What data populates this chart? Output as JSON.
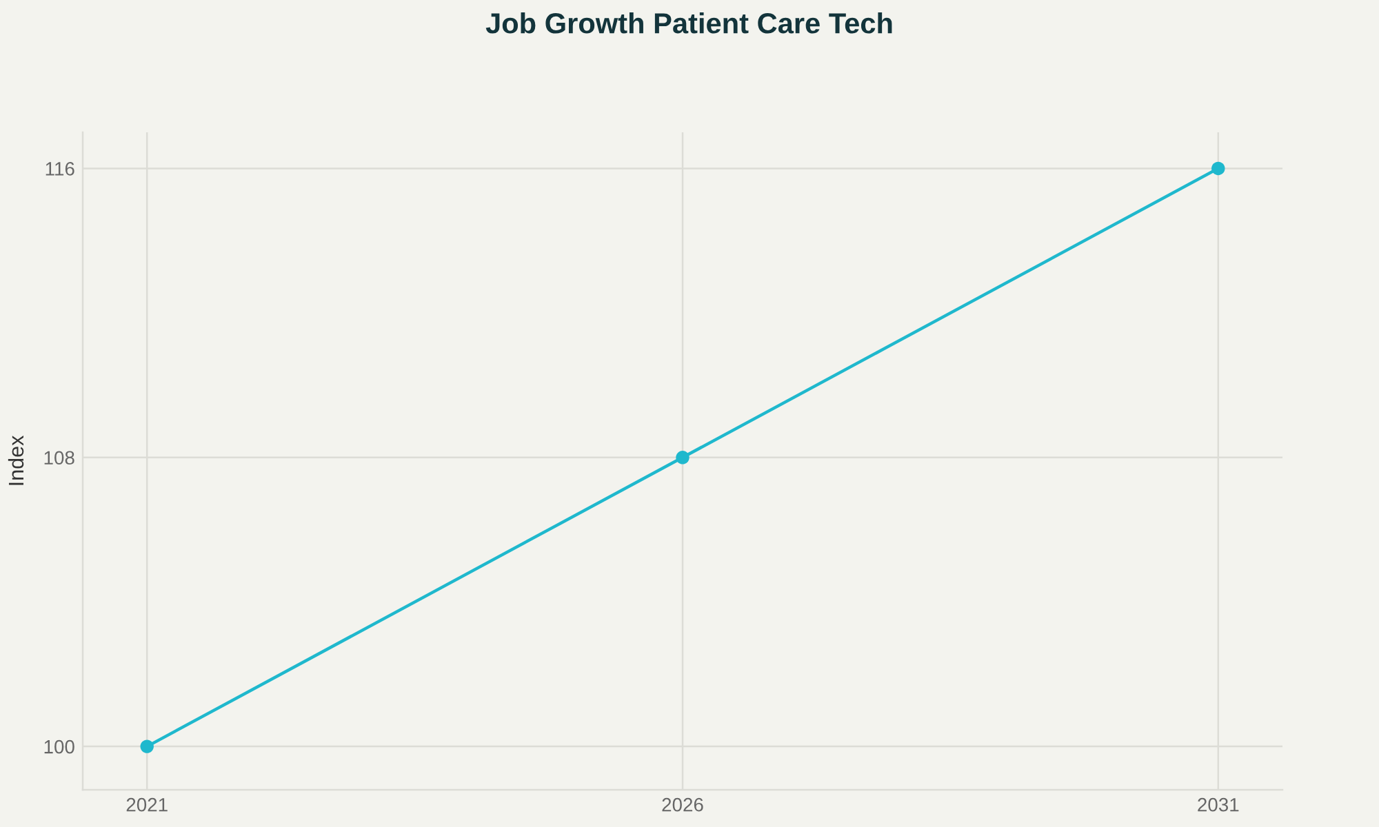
{
  "chart_data": {
    "type": "line",
    "title": "Job Growth Patient Care Tech",
    "ylabel": "Index",
    "x": [
      2021,
      2026,
      2031
    ],
    "series": [
      {
        "color": "#1fb8cd",
        "values": [
          100,
          108,
          116
        ]
      }
    ],
    "xlim": [
      2020.4,
      2031.6
    ],
    "xticks": [
      2021,
      2026,
      2031
    ],
    "ylim": [
      98.8,
      117
    ],
    "yticks": [
      100,
      108,
      116
    ],
    "grid": true,
    "marker": "circle",
    "line_style": "solid"
  }
}
